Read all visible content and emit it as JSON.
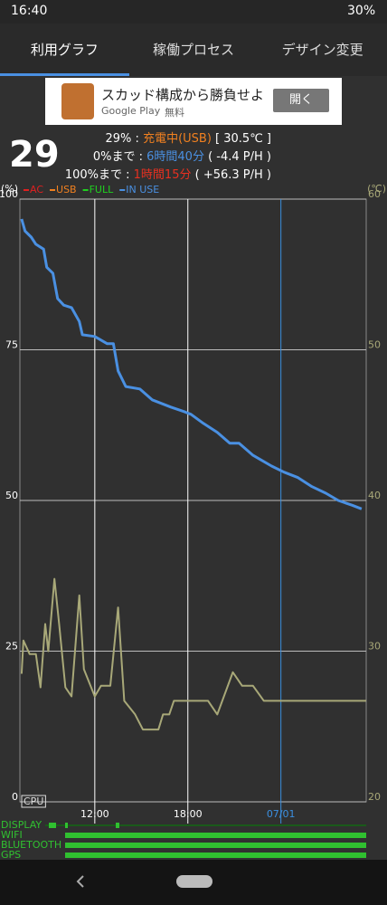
{
  "status_bar": {
    "time": "16:40",
    "battery": "30%"
  },
  "tabs": [
    "利用グラフ",
    "稼働プロセス",
    "デザイン変更"
  ],
  "ad": {
    "title": "スカッド構成から勝負せよ",
    "store": "Google Play",
    "price": "無料",
    "button": "開く"
  },
  "summary": {
    "level": "29",
    "line1": {
      "prefix": "29% : ",
      "state": "充電中(USB)",
      "suffix": " [ 30.5℃ ]"
    },
    "line2": {
      "prefix": "0%まで : ",
      "time": "6時間40分",
      "suffix": " ( -4.4 P/H )"
    },
    "line3": {
      "prefix": "100%まで : ",
      "time": "1時間15分",
      "suffix": " ( +56.3 P/H )"
    }
  },
  "chart_data": {
    "type": "line",
    "y_label": "(%)",
    "y2_label": "(℃)",
    "legend": [
      {
        "label": "AC",
        "color": "#e02020"
      },
      {
        "label": "USB",
        "color": "#f08020"
      },
      {
        "label": "FULL",
        "color": "#20d020"
      },
      {
        "label": "IN USE",
        "color": "#4a90e2"
      }
    ],
    "xlim": [
      7.17,
      29.5
    ],
    "xticks": [
      {
        "value": 12,
        "label": "12:00"
      },
      {
        "value": 18,
        "label": "18:00"
      },
      {
        "value": 24,
        "label": "07/01"
      }
    ],
    "xtick_colors": [
      "#ffffff",
      "#ffffff",
      "#3b8fe0"
    ],
    "ylim": [
      0,
      100
    ],
    "yticks": [
      0,
      25,
      50,
      75,
      100
    ],
    "y2lim": [
      20,
      60
    ],
    "y2ticks": [
      20,
      30,
      40,
      50,
      60
    ],
    "grid": true,
    "cpu_label": "CPU",
    "series": [
      {
        "name": "IN USE",
        "color": "#4a90e2",
        "x": [
          7.28,
          7.5,
          7.9,
          8.2,
          8.7,
          8.9,
          9.3,
          9.6,
          10.0,
          10.5,
          11.0,
          11.2,
          12.0,
          12.8,
          13.2,
          13.5,
          14.0,
          14.9,
          15.7,
          16.9,
          17.8,
          18.2,
          19.0,
          19.9,
          20.7,
          21.3,
          22.2,
          23.4,
          24.2,
          25.1,
          26.0,
          26.9,
          27.7,
          28.6,
          29.2
        ],
        "values": [
          96.7,
          94.7,
          93.7,
          92.5,
          91.7,
          88.7,
          87.7,
          83.5,
          82.4,
          82.0,
          79.7,
          77.5,
          77.2,
          76.0,
          76.0,
          71.5,
          68.9,
          68.5,
          66.7,
          65.5,
          64.7,
          64.3,
          62.8,
          61.3,
          59.5,
          59.5,
          57.5,
          55.7,
          54.7,
          53.8,
          52.3,
          51.2,
          50.0,
          49.2,
          48.6
        ]
      },
      {
        "name": "CPU",
        "color": "#a8a878",
        "axis": "y2",
        "x": [
          7.28,
          7.4,
          7.8,
          8.2,
          8.5,
          8.8,
          9.0,
          9.4,
          9.7,
          10.1,
          10.5,
          11.0,
          11.3,
          12.0,
          12.4,
          13.0,
          13.5,
          13.9,
          14.6,
          15.1,
          16.1,
          16.4,
          16.8,
          17.1,
          19.3,
          19.9,
          20.9,
          21.5,
          22.2,
          22.9,
          29.5
        ],
        "values": [
          28.5,
          30.7,
          29.8,
          29.8,
          27.6,
          31.8,
          30.0,
          34.8,
          31.8,
          27.6,
          27.0,
          33.7,
          28.8,
          27.0,
          27.7,
          27.7,
          32.9,
          26.7,
          25.8,
          24.8,
          24.8,
          25.8,
          25.8,
          26.7,
          26.7,
          25.8,
          28.6,
          27.7,
          27.7,
          26.7,
          26.7
        ]
      }
    ]
  },
  "usage_rows": [
    "DISPLAY",
    "WIFI",
    "BLUETOOTH",
    "GPS"
  ]
}
